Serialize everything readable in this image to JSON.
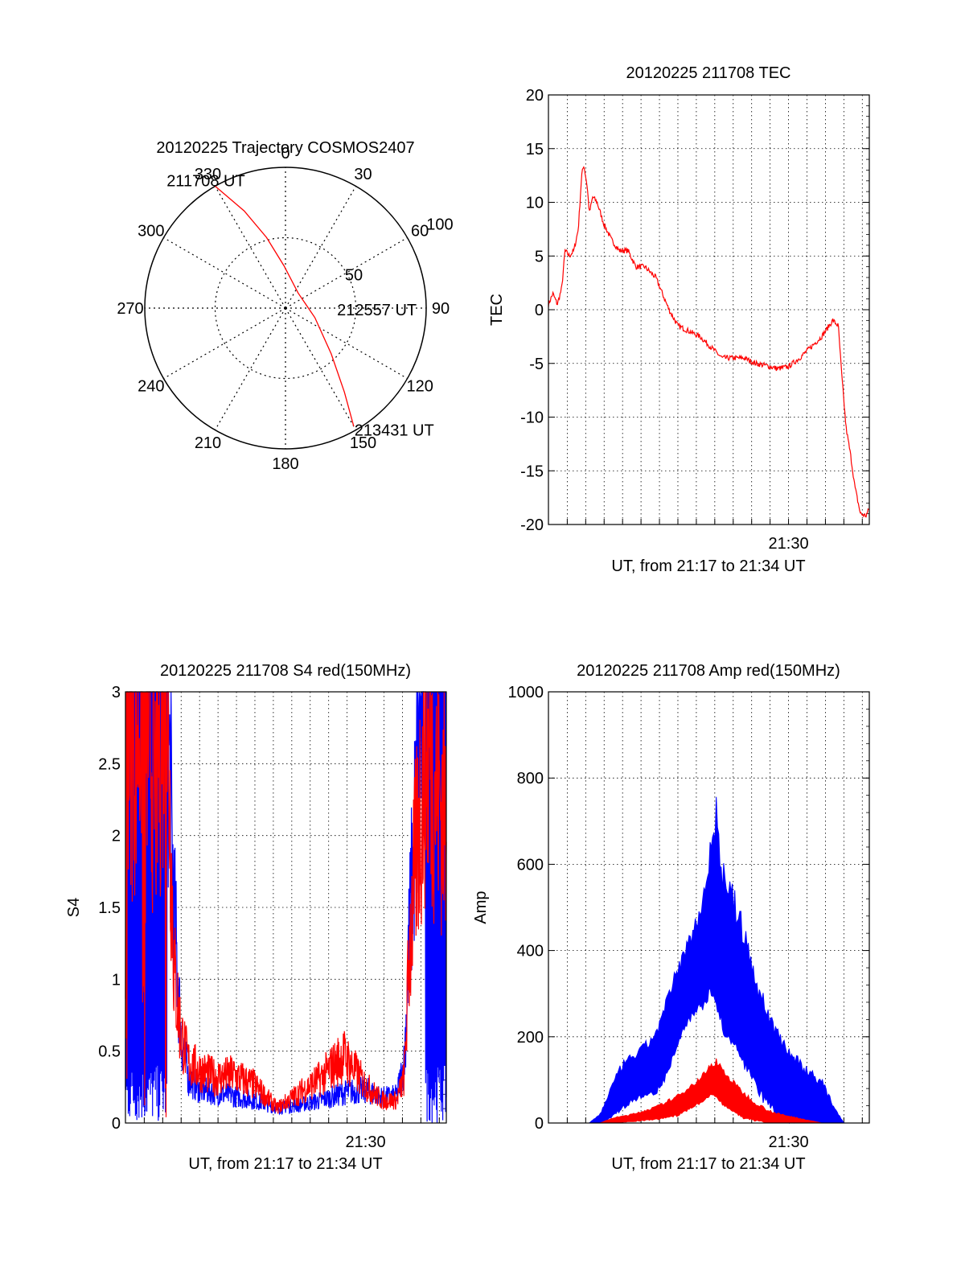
{
  "colors": {
    "red": "#ff0000",
    "blue": "#0000ff",
    "axis": "#000000",
    "grid": "#000000",
    "background": "#ffffff"
  },
  "chart_data": [
    {
      "type": "polar",
      "title": "20120225 Trajectory COSMOS2407",
      "angle_labels": [
        "0",
        "30",
        "60",
        "90",
        "120",
        "150",
        "180",
        "210",
        "240",
        "270",
        "300",
        "330"
      ],
      "radius_labels": [
        "50",
        "100"
      ],
      "grid": true,
      "series": [
        {
          "color": "#ff0000",
          "points": [
            {
              "azimuth": 330,
              "radius_label": 100
            },
            {
              "azimuth": 337,
              "radius_label": 75
            },
            {
              "azimuth": 345,
              "radius_label": 52
            },
            {
              "azimuth": 358,
              "radius_label": 30
            },
            {
              "azimuth": 40,
              "radius_label": 14
            },
            {
              "azimuth": 108,
              "radius_label": 22
            },
            {
              "azimuth": 135,
              "radius_label": 46
            },
            {
              "azimuth": 145,
              "radius_label": 73
            },
            {
              "azimuth": 150,
              "radius_label": 97
            }
          ]
        }
      ],
      "annotations": [
        {
          "text": "211708 UT",
          "azimuth": 332,
          "radius_label": 102
        },
        {
          "text": "212557 UT",
          "azimuth": 110,
          "radius_label": 22
        },
        {
          "text": "213431 UT",
          "azimuth": 150,
          "radius_label": 98
        }
      ]
    },
    {
      "type": "line",
      "title": "20120225 211708 TEC",
      "xlabel": "UT, from 21:17 to 21:34 UT",
      "ylabel": "TEC",
      "xlim": [
        21.283,
        21.573
      ],
      "ylim": [
        -20,
        20
      ],
      "yticks": [
        "-20",
        "-15",
        "-10",
        "-5",
        "0",
        "5",
        "10",
        "15",
        "20"
      ],
      "xtick_labels": [
        {
          "x": 21.5,
          "label": "21:30"
        }
      ],
      "grid": true,
      "series": [
        {
          "color": "#ff0000",
          "x": [
            21.283,
            21.287,
            21.291,
            21.295,
            21.298,
            21.302,
            21.306,
            21.31,
            21.313,
            21.315,
            21.318,
            21.32,
            21.323,
            21.327,
            21.333,
            21.34,
            21.347,
            21.355,
            21.362,
            21.37,
            21.38,
            21.392,
            21.4,
            21.41,
            21.42,
            21.43,
            21.44,
            21.45,
            21.46,
            21.47,
            21.48,
            21.49,
            21.5,
            21.51,
            21.52,
            21.53,
            21.54,
            21.545,
            21.548,
            21.552,
            21.556,
            21.56,
            21.565,
            21.57,
            21.573
          ],
          "y": [
            0.5,
            1.5,
            0.5,
            2,
            5.5,
            5,
            5.5,
            7.5,
            12.5,
            13.5,
            11.5,
            9,
            10.5,
            10,
            8,
            6.5,
            5.5,
            5.5,
            4,
            4,
            3,
            0,
            -1.5,
            -2,
            -2.5,
            -3.5,
            -4.5,
            -4.5,
            -4.5,
            -5,
            -5.2,
            -5.5,
            -5.3,
            -4.5,
            -3.5,
            -2.5,
            -1,
            -1.5,
            -6,
            -11,
            -13.5,
            -16.5,
            -19,
            -19.2,
            -18.5
          ]
        }
      ]
    },
    {
      "type": "line",
      "title": "20120225 211708 S4 red(150MHz)",
      "xlabel": "UT, from 21:17 to 21:34 UT",
      "ylabel": "S4",
      "xlim": [
        21.283,
        21.573
      ],
      "ylim": [
        0,
        3
      ],
      "yticks": [
        "0",
        "0.5",
        "1",
        "1.5",
        "2",
        "2.5",
        "3"
      ],
      "xtick_labels": [
        {
          "x": 21.5,
          "label": "21:30"
        }
      ],
      "grid": true,
      "series": [
        {
          "color": "#0000ff",
          "x": [
            21.283,
            21.29,
            21.3,
            21.31,
            21.32,
            21.327,
            21.333,
            21.34,
            21.35,
            21.365,
            21.38,
            21.4,
            21.42,
            21.44,
            21.46,
            21.48,
            21.5,
            21.515,
            21.528,
            21.535,
            21.54,
            21.548,
            21.555,
            21.565,
            21.573
          ],
          "y": [
            3,
            3,
            3,
            3,
            3,
            1.4,
            0.6,
            0.3,
            0.22,
            0.2,
            0.18,
            0.15,
            0.1,
            0.12,
            0.15,
            0.2,
            0.22,
            0.17,
            0.18,
            0.4,
            1.3,
            2.4,
            3,
            3,
            3
          ]
        },
        {
          "color": "#ff0000",
          "x": [
            21.283,
            21.29,
            21.3,
            21.31,
            21.32,
            21.327,
            21.333,
            21.34,
            21.35,
            21.365,
            21.38,
            21.4,
            21.42,
            21.44,
            21.46,
            21.48,
            21.5,
            21.515,
            21.528,
            21.535,
            21.54,
            21.548,
            21.555,
            21.565,
            21.573
          ],
          "y": [
            3,
            2.5,
            3,
            2.2,
            3,
            1.0,
            0.6,
            0.4,
            0.35,
            0.3,
            0.32,
            0.25,
            0.1,
            0.2,
            0.3,
            0.45,
            0.25,
            0.15,
            0.15,
            0.3,
            1.2,
            2.0,
            2.5,
            2.2,
            2.0
          ]
        }
      ]
    },
    {
      "type": "area",
      "title": "20120225 211708 Amp red(150MHz)",
      "xlabel": "UT, from 21:17 to 21:34 UT",
      "ylabel": "Amp",
      "xlim": [
        21.283,
        21.573
      ],
      "ylim": [
        0,
        1000
      ],
      "yticks": [
        "0",
        "200",
        "400",
        "600",
        "800",
        "1000"
      ],
      "xtick_labels": [
        {
          "x": 21.5,
          "label": "21:30"
        }
      ],
      "grid": true,
      "series": [
        {
          "color": "#0000ff",
          "x": [
            21.283,
            21.32,
            21.33,
            21.34,
            21.35,
            21.36,
            21.37,
            21.38,
            21.39,
            21.4,
            21.41,
            21.42,
            21.43,
            21.435,
            21.44,
            21.45,
            21.46,
            21.47,
            21.48,
            21.49,
            21.5,
            21.51,
            21.52,
            21.53,
            21.54,
            21.55,
            21.573
          ],
          "upper": [
            0,
            0,
            20,
            80,
            130,
            150,
            170,
            200,
            270,
            350,
            410,
            480,
            620,
            700,
            560,
            500,
            420,
            320,
            250,
            200,
            160,
            130,
            110,
            90,
            40,
            0,
            0
          ],
          "lower": [
            0,
            0,
            0,
            20,
            40,
            60,
            70,
            80,
            120,
            200,
            250,
            280,
            320,
            300,
            240,
            200,
            150,
            100,
            60,
            30,
            15,
            10,
            5,
            2,
            0,
            0,
            0
          ]
        },
        {
          "color": "#ff0000",
          "x": [
            21.283,
            21.33,
            21.34,
            21.36,
            21.38,
            21.4,
            21.41,
            21.42,
            21.43,
            21.435,
            21.44,
            21.45,
            21.46,
            21.47,
            21.48,
            21.49,
            21.5,
            21.51,
            21.52,
            21.53,
            21.573
          ],
          "upper": [
            0,
            0,
            10,
            20,
            35,
            60,
            80,
            100,
            130,
            140,
            120,
            90,
            65,
            45,
            30,
            20,
            15,
            10,
            5,
            0,
            0
          ],
          "lower": [
            0,
            0,
            0,
            5,
            10,
            20,
            35,
            50,
            70,
            65,
            50,
            30,
            15,
            8,
            3,
            0,
            0,
            0,
            0,
            0,
            0
          ]
        }
      ]
    }
  ]
}
